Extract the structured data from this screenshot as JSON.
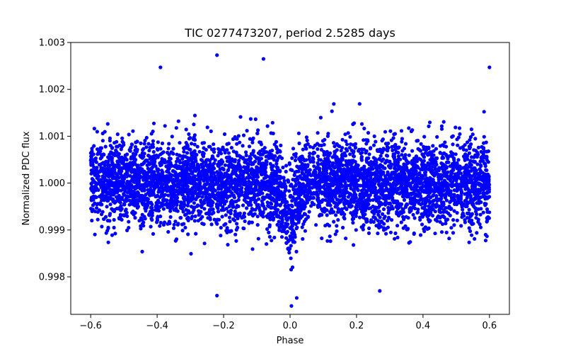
{
  "chart_data": {
    "type": "scatter",
    "title": "TIC 0277473207, period 2.5285 days",
    "xlabel": "Phase",
    "ylabel": "Normalized PDC flux",
    "xlim": [
      -0.66,
      0.66
    ],
    "ylim": [
      0.9972,
      1.003
    ],
    "xticks": [
      -0.6,
      -0.4,
      -0.2,
      0.0,
      0.2,
      0.4,
      0.6
    ],
    "xtick_labels": [
      "−0.6",
      "−0.4",
      "−0.2",
      "0.0",
      "0.2",
      "0.4",
      "0.6"
    ],
    "yticks": [
      0.998,
      0.999,
      1.0,
      1.001,
      1.002,
      1.003
    ],
    "ytick_labels": [
      "0.998",
      "0.999",
      "1.000",
      "1.001",
      "1.002",
      "1.003"
    ],
    "grid": false,
    "series": [
      {
        "name": "PDC flux",
        "color": "#0000ff",
        "x_range": [
          -0.6,
          0.6
        ],
        "baseline": 1.0,
        "scatter_sigma": 0.00045,
        "transit": {
          "center": 0.0,
          "depth": 0.0008,
          "half_width": 0.035
        },
        "notable_points": [
          {
            "x": -0.22,
            "y": 1.00273
          },
          {
            "x": -0.08,
            "y": 1.00265
          },
          {
            "x": -0.39,
            "y": 1.00247
          },
          {
            "x": 0.6,
            "y": 1.00247
          },
          {
            "x": 0.004,
            "y": 0.99738
          },
          {
            "x": 0.02,
            "y": 0.99755
          },
          {
            "x": -0.22,
            "y": 0.9976
          },
          {
            "x": 0.27,
            "y": 0.9977
          }
        ]
      }
    ]
  }
}
